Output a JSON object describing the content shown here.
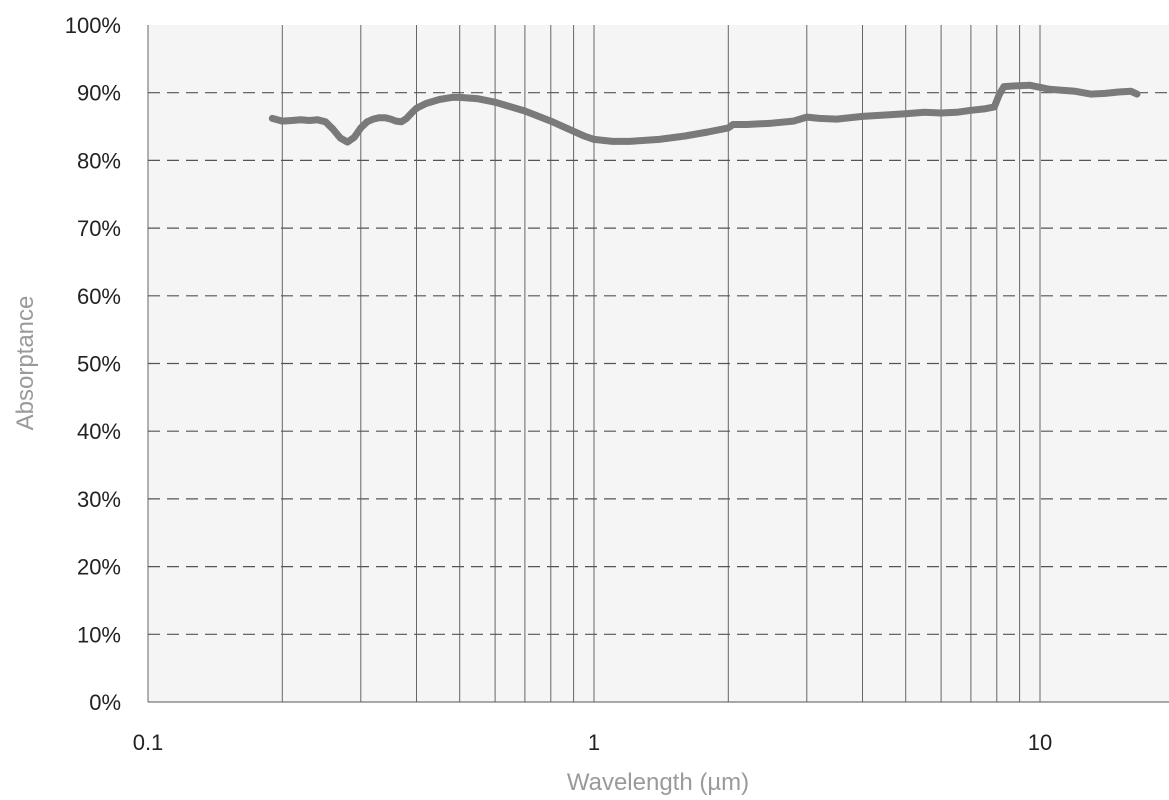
{
  "chart_data": {
    "type": "line",
    "title": "",
    "xlabel": "Wavelength (µm)",
    "ylabel": "Absorptance",
    "x_scale": "log",
    "xlim": [
      0.1,
      17.5
    ],
    "ylim": [
      0,
      1
    ],
    "x_ticks": [
      {
        "value": 0.1,
        "label": "0.1"
      },
      {
        "value": 1,
        "label": "1"
      },
      {
        "value": 10,
        "label": "10"
      }
    ],
    "y_ticks": [
      {
        "value": 0.0,
        "label": "0%"
      },
      {
        "value": 0.1,
        "label": "10%"
      },
      {
        "value": 0.2,
        "label": "20%"
      },
      {
        "value": 0.3,
        "label": "30%"
      },
      {
        "value": 0.4,
        "label": "40%"
      },
      {
        "value": 0.5,
        "label": "50%"
      },
      {
        "value": 0.6,
        "label": "60%"
      },
      {
        "value": 0.7,
        "label": "70%"
      },
      {
        "value": 0.8,
        "label": "80%"
      },
      {
        "value": 0.9,
        "label": "90%"
      },
      {
        "value": 1.0,
        "label": "100%"
      }
    ],
    "x_minor_gridlines": [
      0.2,
      0.3,
      0.4,
      0.5,
      0.6,
      0.7,
      0.8,
      0.9,
      1,
      2,
      3,
      4,
      5,
      6,
      7,
      8,
      9,
      10
    ],
    "grid": {
      "x": "solid log decades",
      "y": "dashed"
    },
    "legend": "none",
    "series": [
      {
        "color": "#7a7a7a",
        "points": [
          [
            0.19,
            0.862
          ],
          [
            0.2,
            0.858
          ],
          [
            0.21,
            0.859
          ],
          [
            0.22,
            0.86
          ],
          [
            0.23,
            0.859
          ],
          [
            0.24,
            0.86
          ],
          [
            0.25,
            0.857
          ],
          [
            0.26,
            0.846
          ],
          [
            0.27,
            0.833
          ],
          [
            0.28,
            0.827
          ],
          [
            0.29,
            0.834
          ],
          [
            0.3,
            0.848
          ],
          [
            0.31,
            0.857
          ],
          [
            0.32,
            0.861
          ],
          [
            0.33,
            0.863
          ],
          [
            0.34,
            0.863
          ],
          [
            0.35,
            0.861
          ],
          [
            0.36,
            0.858
          ],
          [
            0.37,
            0.857
          ],
          [
            0.38,
            0.862
          ],
          [
            0.39,
            0.87
          ],
          [
            0.4,
            0.877
          ],
          [
            0.42,
            0.884
          ],
          [
            0.45,
            0.89
          ],
          [
            0.48,
            0.893
          ],
          [
            0.5,
            0.893
          ],
          [
            0.55,
            0.891
          ],
          [
            0.6,
            0.886
          ],
          [
            0.7,
            0.873
          ],
          [
            0.8,
            0.858
          ],
          [
            0.9,
            0.843
          ],
          [
            0.95,
            0.836
          ],
          [
            1.0,
            0.831
          ],
          [
            1.1,
            0.828
          ],
          [
            1.2,
            0.828
          ],
          [
            1.4,
            0.831
          ],
          [
            1.6,
            0.836
          ],
          [
            1.8,
            0.842
          ],
          [
            2.0,
            0.848
          ],
          [
            2.05,
            0.853
          ],
          [
            2.2,
            0.853
          ],
          [
            2.5,
            0.855
          ],
          [
            2.8,
            0.858
          ],
          [
            3.0,
            0.864
          ],
          [
            3.2,
            0.862
          ],
          [
            3.5,
            0.861
          ],
          [
            4.0,
            0.865
          ],
          [
            4.5,
            0.867
          ],
          [
            5.0,
            0.869
          ],
          [
            5.5,
            0.871
          ],
          [
            6.0,
            0.87
          ],
          [
            6.5,
            0.871
          ],
          [
            7.0,
            0.874
          ],
          [
            7.5,
            0.876
          ],
          [
            7.9,
            0.879
          ],
          [
            8.1,
            0.897
          ],
          [
            8.3,
            0.909
          ],
          [
            8.8,
            0.91
          ],
          [
            9.5,
            0.911
          ],
          [
            10.0,
            0.908
          ],
          [
            10.5,
            0.905
          ],
          [
            11.0,
            0.904
          ],
          [
            12.0,
            0.902
          ],
          [
            13.0,
            0.898
          ],
          [
            14.0,
            0.899
          ],
          [
            15.0,
            0.901
          ],
          [
            16.0,
            0.902
          ],
          [
            16.5,
            0.898
          ]
        ]
      }
    ]
  }
}
